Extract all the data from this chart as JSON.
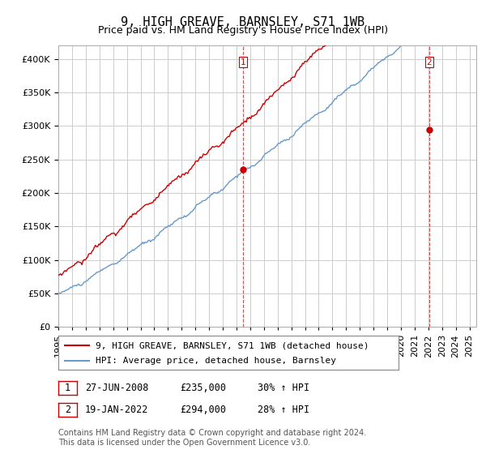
{
  "title": "9, HIGH GREAVE, BARNSLEY, S71 1WB",
  "subtitle": "Price paid vs. HM Land Registry's House Price Index (HPI)",
  "yticks": [
    0,
    50000,
    100000,
    150000,
    200000,
    250000,
    300000,
    350000,
    400000
  ],
  "ylim": [
    0,
    420000
  ],
  "xlim_start": 1995.0,
  "xlim_end": 2025.5,
  "background_color": "#ffffff",
  "grid_color": "#cccccc",
  "hpi_color": "#6699cc",
  "price_color": "#cc0000",
  "purchase1_date": 2008.49,
  "purchase1_price": 235000,
  "purchase1_label": "1",
  "purchase2_date": 2022.05,
  "purchase2_price": 294000,
  "purchase2_label": "2",
  "legend_line1": "9, HIGH GREAVE, BARNSLEY, S71 1WB (detached house)",
  "legend_line2": "HPI: Average price, detached house, Barnsley",
  "table_row1": [
    "1",
    "27-JUN-2008",
    "£235,000",
    "30% ↑ HPI"
  ],
  "table_row2": [
    "2",
    "19-JAN-2022",
    "£294,000",
    "28% ↑ HPI"
  ],
  "footnote": "Contains HM Land Registry data © Crown copyright and database right 2024.\nThis data is licensed under the Open Government Licence v3.0.",
  "title_fontsize": 11,
  "subtitle_fontsize": 9,
  "tick_fontsize": 8,
  "legend_fontsize": 8,
  "table_fontsize": 8.5,
  "footnote_fontsize": 7
}
